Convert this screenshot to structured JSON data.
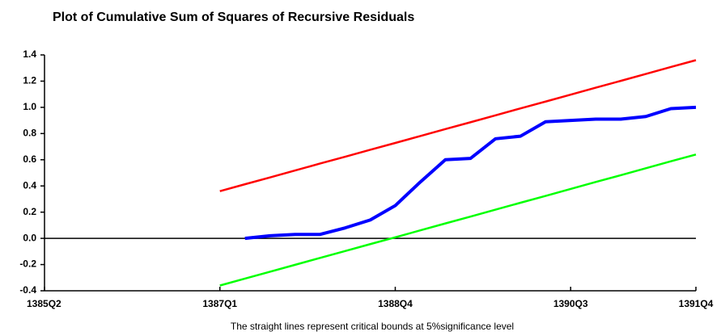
{
  "chart_data": {
    "type": "line",
    "title": "Plot of Cumulative Sum of Squares of Recursive Residuals",
    "caption": "The straight lines represent critical bounds at 5%significance level",
    "categories": [
      "1385Q2",
      null,
      null,
      null,
      null,
      null,
      null,
      "1387Q1",
      null,
      null,
      null,
      null,
      null,
      null,
      "1388Q4",
      null,
      null,
      null,
      null,
      null,
      null,
      "1390Q3",
      null,
      null,
      null,
      null,
      "1391Q4"
    ],
    "series": [
      {
        "color": "#ff0000",
        "values": [
          null,
          null,
          null,
          null,
          null,
          null,
          null,
          0.36,
          0.413,
          0.465,
          0.518,
          0.571,
          0.623,
          0.676,
          0.728,
          0.781,
          0.834,
          0.886,
          0.939,
          0.992,
          1.044,
          1.097,
          1.15,
          1.202,
          1.255,
          1.308,
          1.36
        ]
      },
      {
        "color": "#0000ff",
        "values": [
          null,
          null,
          null,
          null,
          null,
          null,
          null,
          null,
          0.0,
          0.02,
          0.03,
          0.03,
          0.08,
          0.14,
          0.25,
          0.43,
          0.6,
          0.61,
          0.76,
          0.78,
          0.89,
          0.9,
          0.91,
          0.91,
          0.93,
          0.99,
          1.0
        ]
      },
      {
        "color": "#00ff00",
        "values": [
          null,
          null,
          null,
          null,
          null,
          null,
          null,
          -0.36,
          -0.307,
          -0.255,
          -0.202,
          -0.149,
          -0.097,
          -0.044,
          0.008,
          0.061,
          0.114,
          0.166,
          0.219,
          0.272,
          0.324,
          0.377,
          0.43,
          0.482,
          0.535,
          0.588,
          0.64
        ]
      }
    ],
    "ylim": [
      -0.4,
      1.4
    ],
    "yticks": [
      -0.4,
      -0.2,
      {
        "value": 0,
        "label": "0.0"
      },
      0.2,
      0.4,
      0.6,
      0.8,
      {
        "value": 1,
        "label": "1.0"
      },
      1.2,
      1.4
    ],
    "grid": false
  }
}
